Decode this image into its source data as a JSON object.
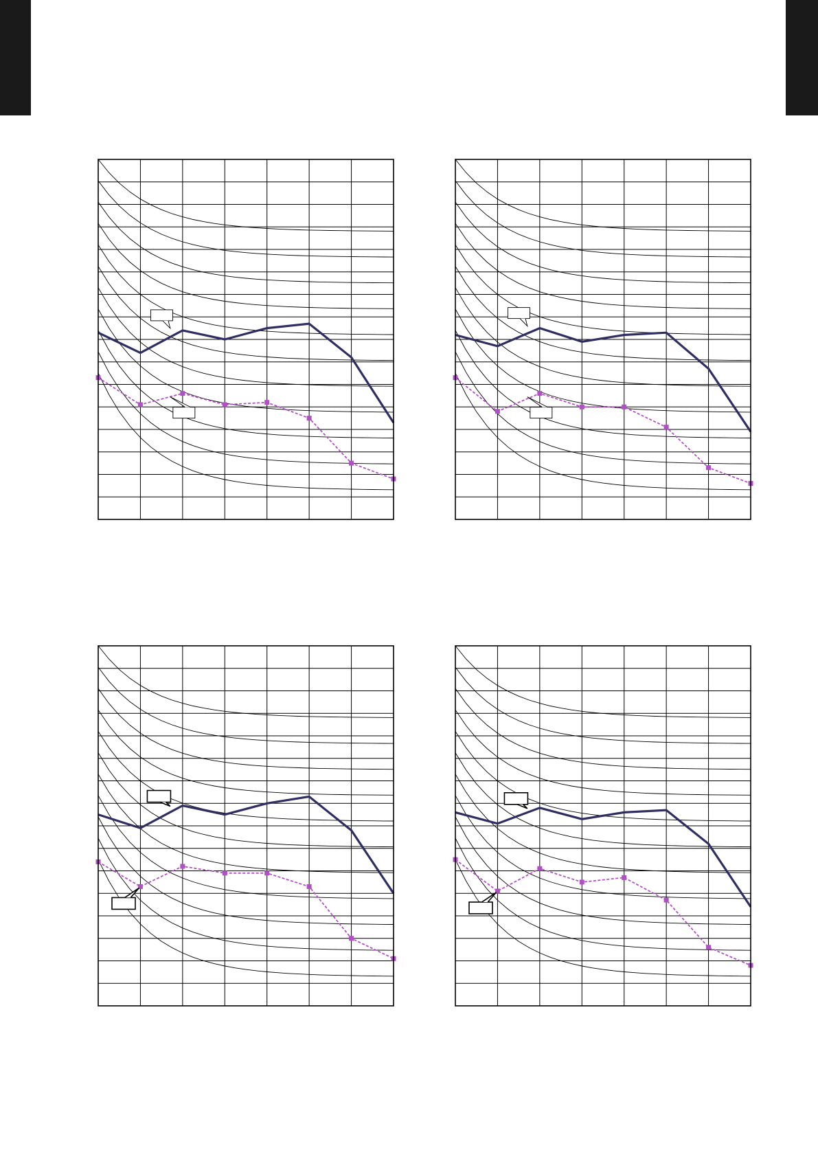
{
  "colors": {
    "solid_series": "#2e2e63",
    "dashed_series": "#b14fc5",
    "grid": "#000000",
    "page_tabs": "#1a1a1a"
  },
  "chart_data": [
    {
      "type": "line",
      "id": "top-left",
      "x": [
        0,
        1,
        2,
        3,
        4,
        5,
        6,
        7
      ],
      "xlim": [
        0,
        7
      ],
      "ylim": [
        0,
        16
      ],
      "grid": true,
      "series": [
        {
          "style": "solid",
          "marker": "none",
          "values": [
            8.3,
            7.4,
            8.4,
            8.0,
            8.5,
            8.7,
            7.2,
            4.3
          ]
        },
        {
          "style": "dashed",
          "marker": "square",
          "values": [
            6.3,
            5.1,
            5.6,
            5.1,
            5.2,
            4.5,
            2.5,
            1.8
          ]
        }
      ],
      "reference_curves": true,
      "callout_style": "white"
    },
    {
      "type": "line",
      "id": "top-right",
      "x": [
        0,
        1,
        2,
        3,
        4,
        5,
        6,
        7
      ],
      "xlim": [
        0,
        7
      ],
      "ylim": [
        0,
        16
      ],
      "grid": true,
      "series": [
        {
          "style": "solid",
          "marker": "none",
          "values": [
            8.2,
            7.7,
            8.5,
            7.9,
            8.2,
            8.3,
            6.7,
            3.9
          ]
        },
        {
          "style": "dashed",
          "marker": "square",
          "values": [
            6.3,
            4.8,
            5.6,
            5.0,
            5.0,
            4.1,
            2.3,
            1.6
          ]
        }
      ],
      "reference_curves": true,
      "callout_style": "white"
    },
    {
      "type": "line",
      "id": "bottom-left",
      "x": [
        0,
        1,
        2,
        3,
        4,
        5,
        6,
        7
      ],
      "xlim": [
        0,
        7
      ],
      "ylim": [
        0,
        16
      ],
      "grid": true,
      "series": [
        {
          "style": "solid",
          "marker": "none",
          "values": [
            8.5,
            7.9,
            8.9,
            8.5,
            9.0,
            9.3,
            7.8,
            5.0
          ]
        },
        {
          "style": "dashed",
          "marker": "square",
          "values": [
            6.4,
            5.3,
            6.2,
            5.9,
            5.9,
            5.3,
            3.0,
            2.1
          ]
        }
      ],
      "reference_curves": true,
      "callout_style": "black"
    },
    {
      "type": "line",
      "id": "bottom-right",
      "x": [
        0,
        1,
        2,
        3,
        4,
        5,
        6,
        7
      ],
      "xlim": [
        0,
        7
      ],
      "ylim": [
        0,
        16
      ],
      "grid": true,
      "series": [
        {
          "style": "solid",
          "marker": "none",
          "values": [
            8.6,
            8.1,
            8.8,
            8.3,
            8.6,
            8.7,
            7.2,
            4.4
          ]
        },
        {
          "style": "dashed",
          "marker": "square",
          "values": [
            6.5,
            5.1,
            6.1,
            5.5,
            5.7,
            4.7,
            2.6,
            1.8
          ]
        }
      ],
      "reference_curves": true,
      "callout_style": "black"
    }
  ]
}
